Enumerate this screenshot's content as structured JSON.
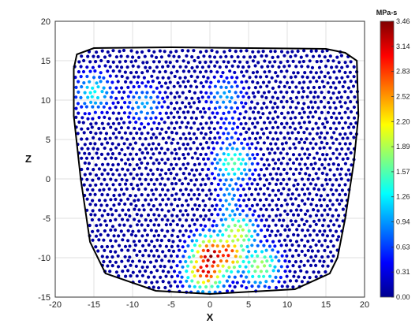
{
  "chart_data": {
    "type": "scatter",
    "title": "",
    "xlabel": "X",
    "ylabel": "Z",
    "xlim": [
      -20,
      20
    ],
    "ylim": [
      -15,
      20
    ],
    "xticks": [
      "-20",
      "-15",
      "-10",
      "-5",
      "0",
      "5",
      "10",
      "15",
      "20"
    ],
    "yticks": [
      "-15",
      "-10",
      "-5",
      "0",
      "5",
      "10",
      "15",
      "20"
    ],
    "grid": true,
    "colorbar": {
      "unit": "MPa-s",
      "min": 0.0,
      "max": 3.46,
      "ticks": [
        "0.00",
        "0.31",
        "0.63",
        "0.94",
        "1.26",
        "1.57",
        "1.89",
        "2.20",
        "2.52",
        "2.83",
        "3.14",
        "3.46"
      ],
      "colormap": "jet"
    },
    "boundary": [
      [
        -17.2,
        15.8
      ],
      [
        -15.0,
        16.6
      ],
      [
        -5.0,
        16.7
      ],
      [
        5.0,
        16.6
      ],
      [
        15.0,
        16.5
      ],
      [
        17.5,
        16.0
      ],
      [
        19.0,
        15.0
      ],
      [
        19.2,
        8.0
      ],
      [
        18.6,
        2.0
      ],
      [
        17.5,
        -5.0
      ],
      [
        16.5,
        -10.0
      ],
      [
        15.5,
        -12.0
      ],
      [
        11.0,
        -14.0
      ],
      [
        0.0,
        -14.6
      ],
      [
        -7.0,
        -14.2
      ],
      [
        -13.5,
        -12.0
      ],
      [
        -15.5,
        -8.0
      ],
      [
        -16.7,
        0.0
      ],
      [
        -17.6,
        8.0
      ],
      [
        -17.6,
        14.0
      ]
    ],
    "hotspots": [
      {
        "x": 0.2,
        "z": -9.8,
        "value": 3.46
      },
      {
        "x": -0.5,
        "z": -11.5,
        "value": 3.2
      },
      {
        "x": 2.2,
        "z": -9.5,
        "value": 3.0
      },
      {
        "x": 3.5,
        "z": -7.0,
        "value": 2.1
      },
      {
        "x": 3.0,
        "z": 2.0,
        "value": 1.6
      },
      {
        "x": 6.5,
        "z": -11.0,
        "value": 1.9
      },
      {
        "x": -15.0,
        "z": 11.0,
        "value": 1.3
      },
      {
        "x": -8.5,
        "z": 9.5,
        "value": 1.0
      },
      {
        "x": 2.0,
        "z": 10.5,
        "value": 1.0
      }
    ]
  }
}
